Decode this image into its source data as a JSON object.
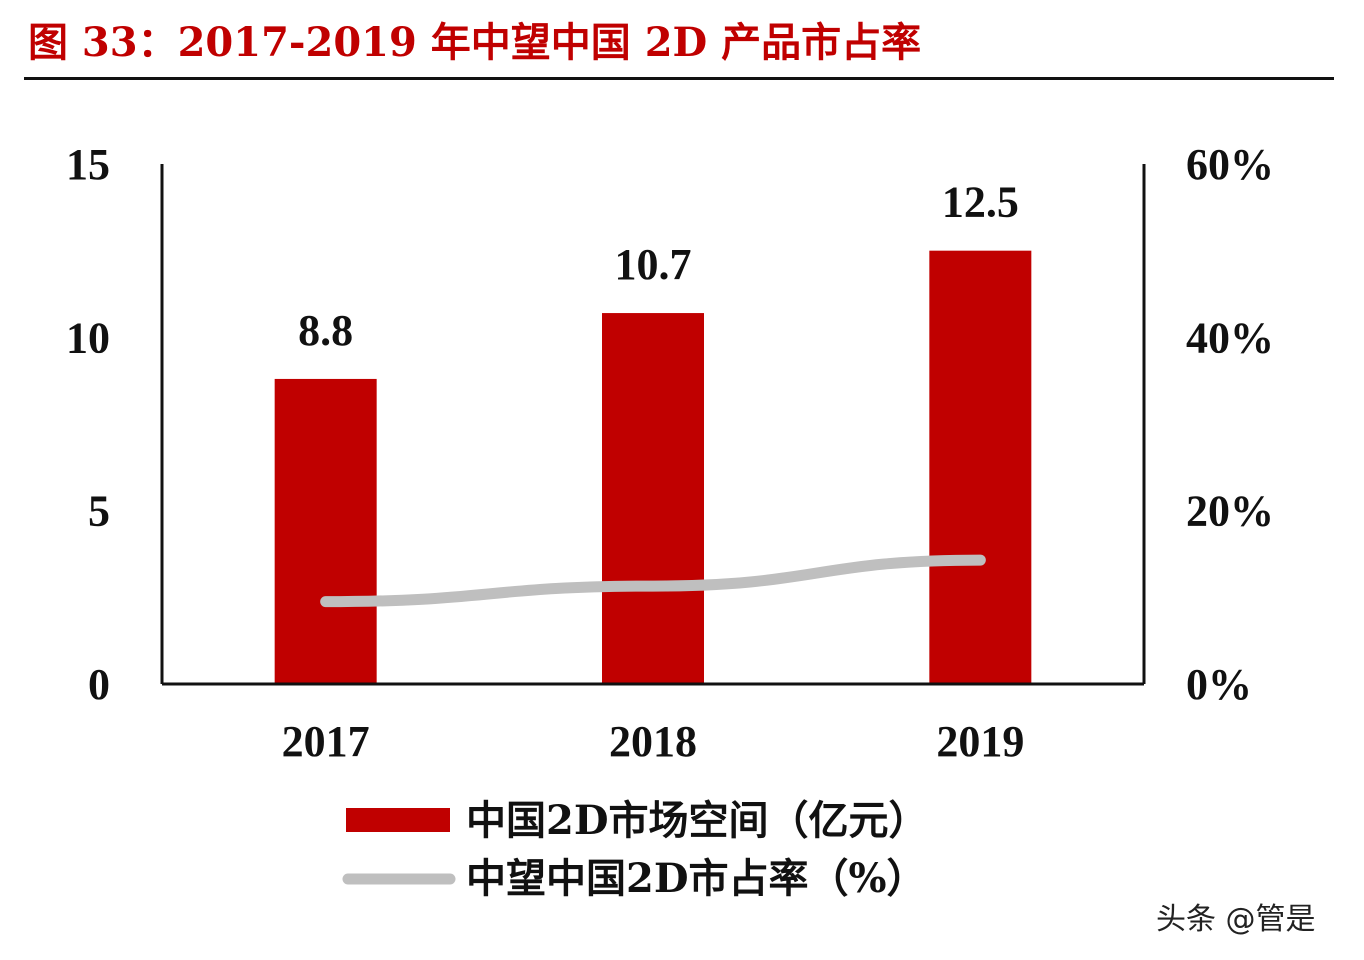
{
  "title": "图 33：2017-2019 年中望中国 2D 产品市占率",
  "watermark": "头条 @管是",
  "chart_data": {
    "type": "bar+line",
    "title": "图 33：2017-2019 年中望中国 2D 产品市占率",
    "categories": [
      "2017",
      "2018",
      "2019"
    ],
    "series": [
      {
        "name": "中国2D市场空间（亿元）",
        "type": "bar",
        "axis": "left",
        "color": "#c00000",
        "values": [
          8.8,
          10.7,
          12.5
        ],
        "labels": [
          "8.8",
          "10.7",
          "12.5"
        ]
      },
      {
        "name": "中望中国2D市占率（%）",
        "type": "line",
        "axis": "right",
        "color": "#bfbfbf",
        "values": [
          9.5,
          11.3,
          14.3
        ]
      }
    ],
    "y_left": {
      "range": [
        0,
        15
      ],
      "ticks": [
        "0",
        "5",
        "10",
        "15"
      ],
      "tick_values": [
        0,
        5,
        10,
        15
      ]
    },
    "y_right": {
      "range": [
        0,
        60
      ],
      "ticks": [
        "0%",
        "20%",
        "40%",
        "60%"
      ],
      "tick_values": [
        0,
        20,
        40,
        60
      ]
    },
    "legend_position": "bottom",
    "grid": false
  }
}
